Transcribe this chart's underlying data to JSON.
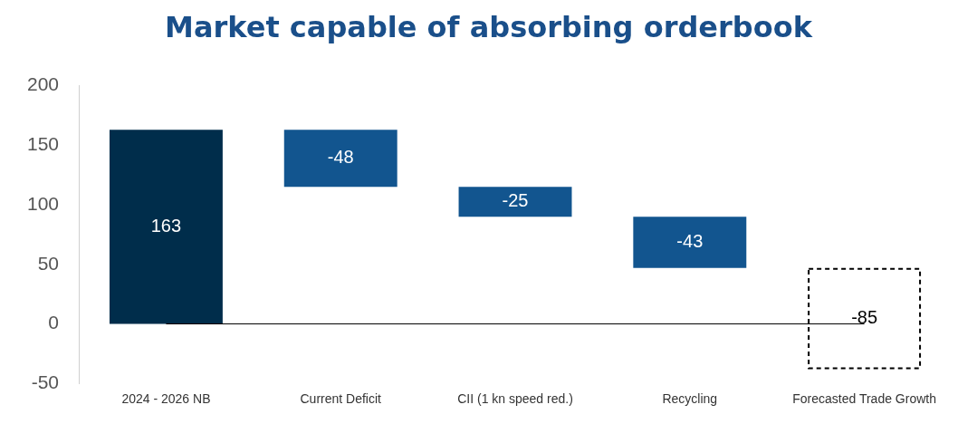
{
  "chart_data": {
    "type": "bar",
    "title": "Market capable of absorbing orderbook",
    "categories": [
      "2024 - 2026 NB",
      "Current Deficit",
      "CII (1 kn speed red.)",
      "Recycling",
      "Forecasted Trade Growth"
    ],
    "series": [
      {
        "colors": [
          "#002d4b",
          "#12558f",
          "#12558f",
          "#12558f",
          null
        ],
        "base": [
          0,
          163,
          115,
          90,
          null
        ],
        "values": [
          163,
          -48,
          -25,
          -43,
          null
        ]
      },
      {
        "color": "#ffffff",
        "line_style": "dashed",
        "base": [
          null,
          null,
          null,
          null,
          47
        ],
        "values": [
          null,
          null,
          null,
          null,
          -85
        ]
      }
    ],
    "ylim": [
      -50,
      200
    ],
    "yticks": [
      -50,
      0,
      50,
      100,
      150,
      200
    ],
    "grid": false,
    "legend": false,
    "data_labels": true,
    "ref_lines": [
      {
        "axis": "y",
        "value": 0,
        "color": "#000000"
      }
    ]
  }
}
